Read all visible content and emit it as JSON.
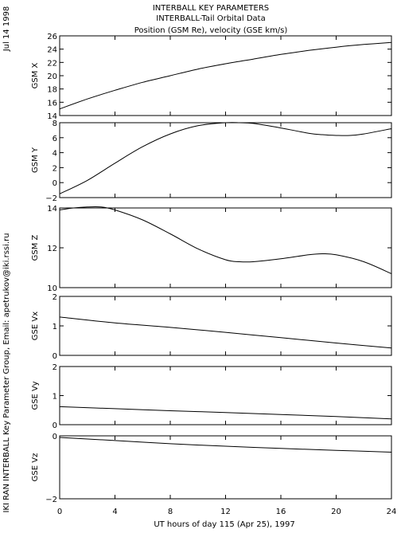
{
  "header": {
    "line1": "INTERBALL KEY PARAMETERS",
    "line2": "INTERBALL-Tail Orbital Data",
    "line3": "Position (GSM Re), velocity (GSE km/s)"
  },
  "side_text": {
    "date": "Jul 14 1998",
    "credit": "IKI RAN INTERBALL Key Parameter Group, Email: apetrukov@iki.rssi.ru"
  },
  "chart_data": {
    "type": "line",
    "xlabel": "UT hours of day 115 (Apr 25), 1997",
    "xlim": [
      0,
      24
    ],
    "xticks": [
      0,
      4,
      8,
      12,
      16,
      20,
      24
    ],
    "panels": [
      {
        "ylabel": "GSM X",
        "ylim": [
          14,
          26
        ],
        "yticks": [
          14,
          16,
          18,
          20,
          22,
          24,
          26
        ],
        "x": [
          0,
          2,
          4,
          6,
          8,
          10,
          12,
          14,
          16,
          18,
          20,
          22,
          24
        ],
        "y": [
          15.0,
          16.5,
          17.8,
          19.0,
          20.0,
          21.0,
          21.8,
          22.5,
          23.2,
          23.8,
          24.3,
          24.7,
          25.0
        ]
      },
      {
        "ylabel": "GSM Y",
        "ylim": [
          -2,
          8
        ],
        "yticks": [
          -2,
          0,
          2,
          4,
          6,
          8
        ],
        "x": [
          0,
          2,
          4,
          6,
          8,
          10,
          12,
          13,
          14,
          16,
          18,
          19,
          20,
          21,
          22,
          24
        ],
        "y": [
          -1.5,
          0.3,
          2.6,
          4.8,
          6.5,
          7.6,
          8.0,
          8.0,
          7.9,
          7.3,
          6.6,
          6.4,
          6.3,
          6.3,
          6.5,
          7.2
        ]
      },
      {
        "ylabel": "GSM Z",
        "ylim": [
          10,
          14
        ],
        "yticks": [
          10,
          12,
          14
        ],
        "x": [
          0,
          1,
          2,
          3,
          4,
          6,
          8,
          10,
          12,
          13,
          14,
          16,
          18,
          19,
          20,
          22,
          24
        ],
        "y": [
          13.9,
          14.0,
          14.05,
          14.05,
          13.9,
          13.4,
          12.7,
          11.95,
          11.4,
          11.3,
          11.3,
          11.45,
          11.65,
          11.7,
          11.65,
          11.3,
          10.7
        ]
      },
      {
        "ylabel": "GSE Vx",
        "ylim": [
          0,
          2
        ],
        "yticks": [
          0,
          1,
          2
        ],
        "x": [
          0,
          4,
          8,
          12,
          16,
          20,
          24
        ],
        "y": [
          1.3,
          1.1,
          0.95,
          0.78,
          0.6,
          0.42,
          0.25
        ]
      },
      {
        "ylabel": "GSE Vy",
        "ylim": [
          0,
          2
        ],
        "yticks": [
          0,
          1,
          2
        ],
        "x": [
          0,
          4,
          8,
          12,
          16,
          20,
          24
        ],
        "y": [
          0.62,
          0.55,
          0.48,
          0.42,
          0.35,
          0.28,
          0.2
        ]
      },
      {
        "ylabel": "GSE Vz",
        "ylim": [
          -2,
          0
        ],
        "yticks": [
          -2,
          0
        ],
        "x": [
          0,
          4,
          8,
          12,
          16,
          20,
          24
        ],
        "y": [
          -0.05,
          -0.15,
          -0.25,
          -0.33,
          -0.4,
          -0.46,
          -0.52
        ]
      }
    ]
  }
}
